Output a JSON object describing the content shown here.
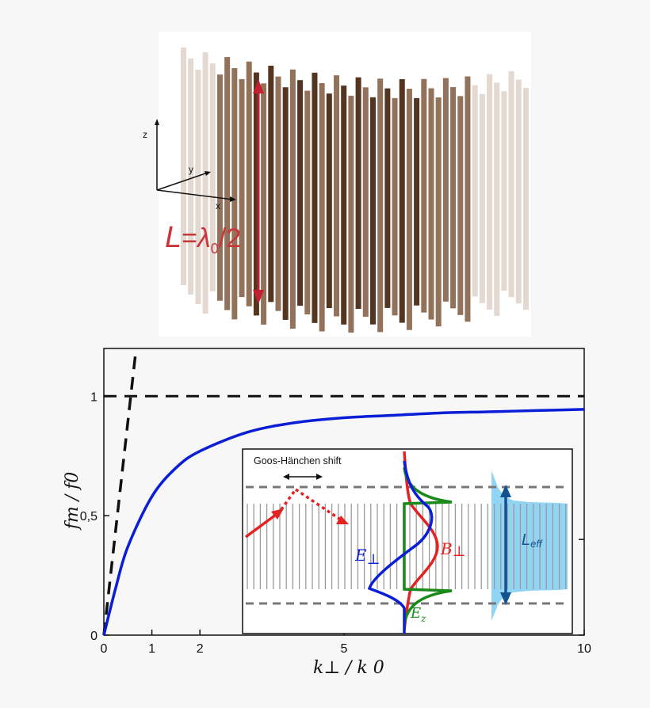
{
  "scene": {
    "axes": {
      "z": "z",
      "y": "y",
      "x": "x"
    },
    "length_label": {
      "L": "L",
      "eq": "=",
      "lambda": "λ",
      "sub": "0",
      "div": "/2"
    }
  },
  "colors": {
    "wire_dark": "#4a2a14",
    "wire_mid": "#8d6a52",
    "wire_light": "#d9ccc2",
    "arrow_red": "#c21f30",
    "curve_blue": "#0a1ed6",
    "ez_green": "#1a8a1a",
    "b_red": "#e32222",
    "leff_fill": "#7fcdf2",
    "leff_arrow": "#11528f"
  },
  "chart_data": {
    "type": "line",
    "xlabel": "k⊥ / k 0",
    "ylabel": "fm / f0",
    "xlim": [
      0,
      10
    ],
    "ylim": [
      0,
      1.2
    ],
    "x_ticks": [
      "0",
      "1",
      "2",
      "5",
      "10"
    ],
    "y_ticks": [
      "0",
      "0,5",
      "1"
    ],
    "series": [
      {
        "style": "solid-blue",
        "x": [
          0,
          0.25,
          0.5,
          1,
          1.5,
          2,
          3,
          4,
          5,
          6,
          7,
          8,
          9,
          10
        ],
        "y": [
          0,
          0.2,
          0.37,
          0.58,
          0.7,
          0.77,
          0.85,
          0.89,
          0.91,
          0.92,
          0.93,
          0.935,
          0.94,
          0.945
        ]
      },
      {
        "style": "dashed-black-horizontal",
        "x": [
          0,
          10
        ],
        "y": [
          1,
          1
        ]
      },
      {
        "style": "dashed-black-light-line",
        "x": [
          0,
          1.2
        ],
        "y": [
          0,
          1.2
        ]
      }
    ]
  },
  "inset": {
    "shift_label": "Goos-Hänchen shift",
    "e_perp": {
      "main": "E",
      "sub": "⊥"
    },
    "b_perp": {
      "main": "B",
      "sub": "⊥"
    },
    "ez": {
      "main": "E",
      "sub": "z"
    },
    "leff": {
      "main": "L",
      "sub": "eff"
    }
  }
}
